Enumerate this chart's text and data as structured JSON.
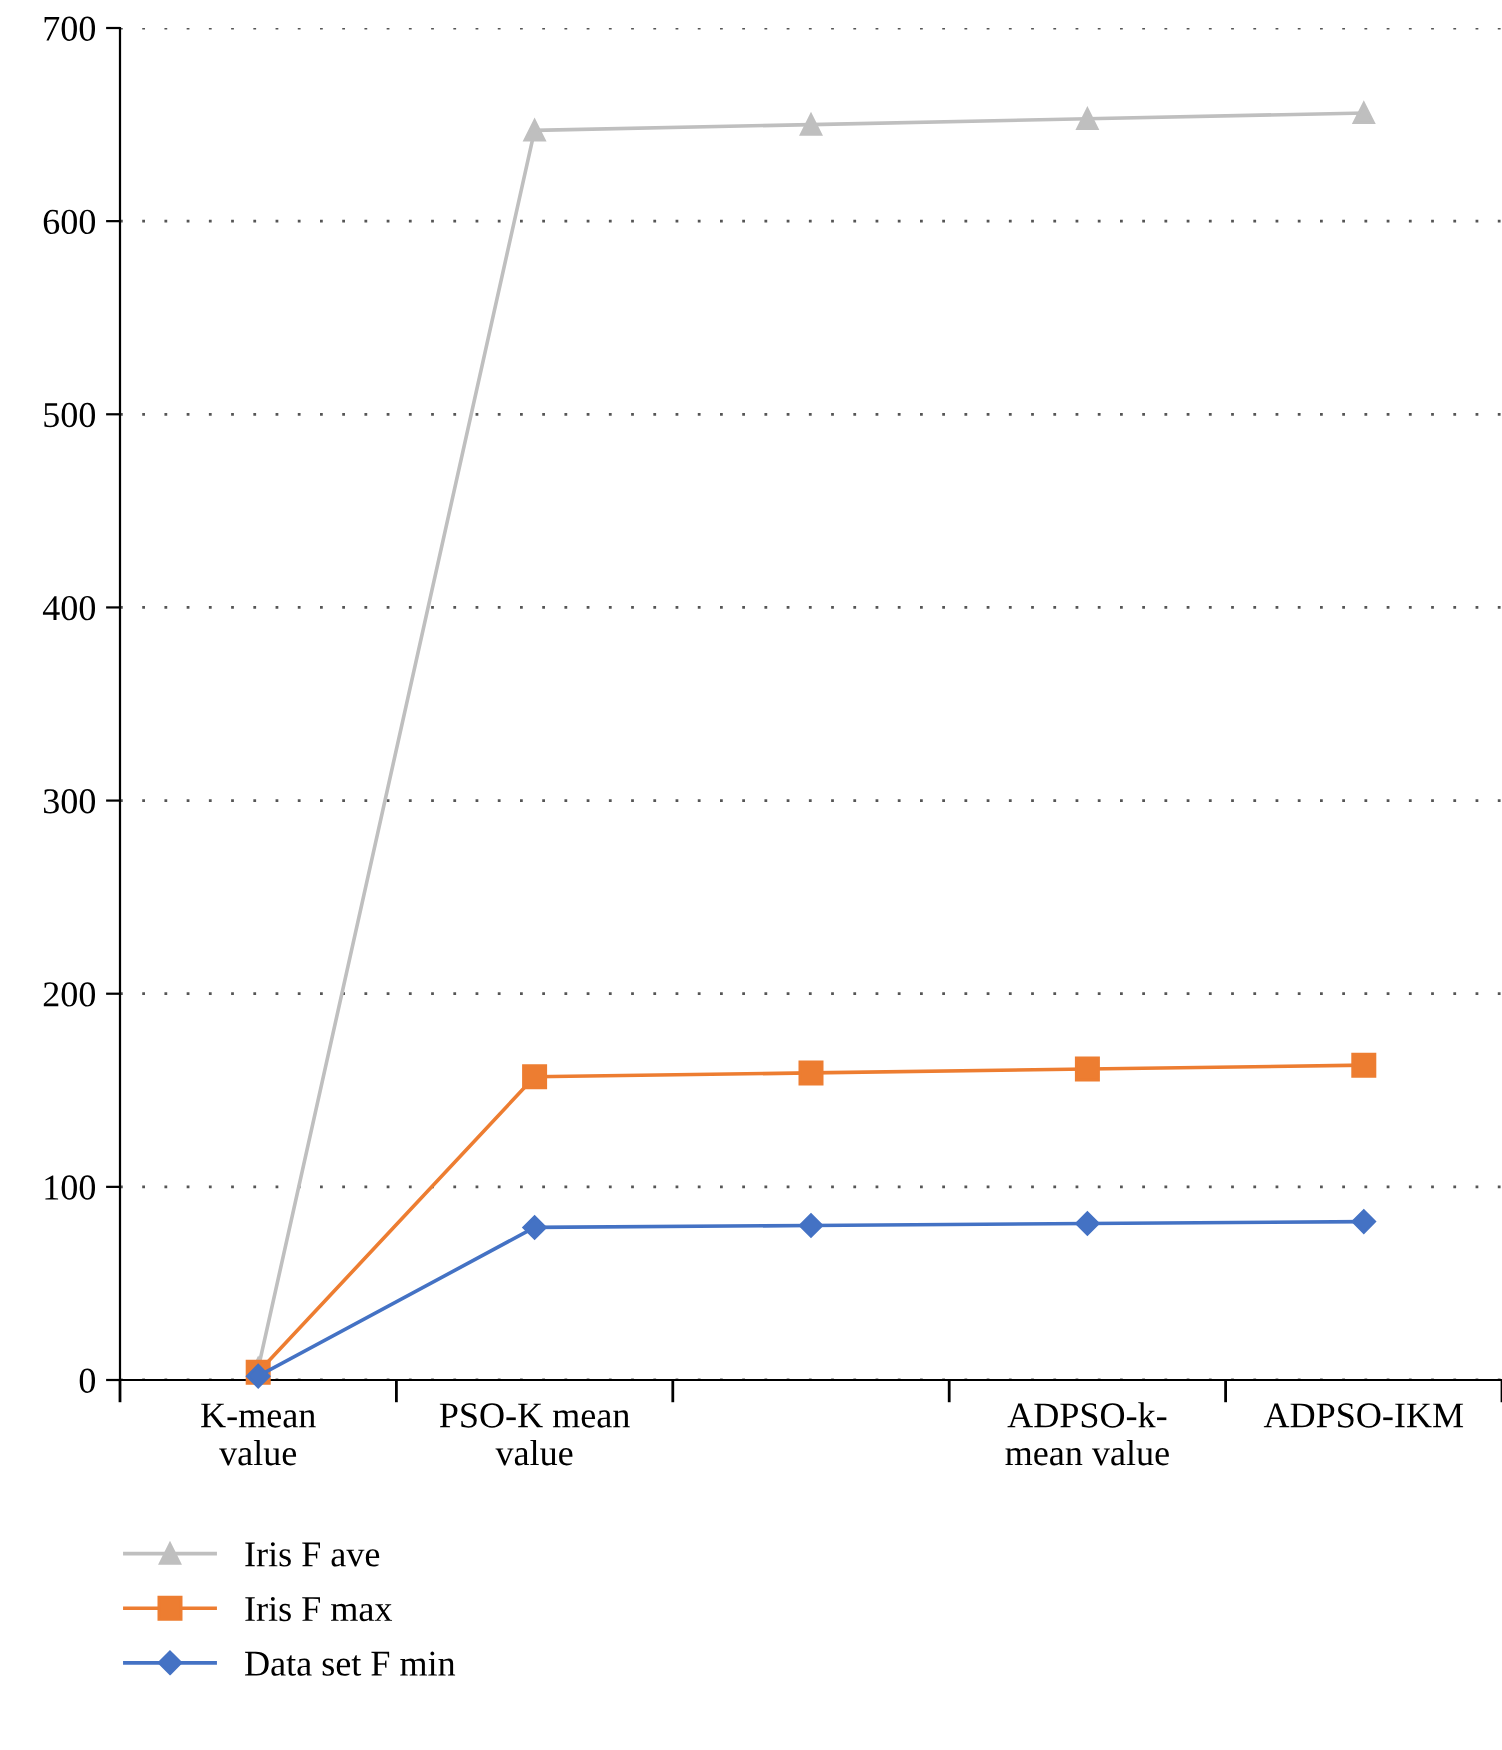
{
  "chart_data": {
    "type": "line",
    "categories": [
      "K-mean value",
      "PSO-K mean value",
      null,
      "ADPSO-k-mean value",
      "ADPSO-IKM"
    ],
    "series": [
      {
        "name": "Iris F ave",
        "color": "#bfbfbf",
        "marker": "triangle",
        "values": [
          6,
          647,
          650,
          653,
          656
        ]
      },
      {
        "name": "Iris F max",
        "color": "#ed7d31",
        "marker": "square",
        "values": [
          4,
          157,
          159,
          161,
          163
        ]
      },
      {
        "name": "Data set F min",
        "color": "#4472c4",
        "marker": "diamond",
        "values": [
          2,
          79,
          80,
          81,
          82
        ]
      }
    ],
    "ylim": [
      0,
      700
    ],
    "yticks": [
      0,
      100,
      200,
      300,
      400,
      500,
      600,
      700
    ],
    "grid": "y",
    "legend": "bottom left",
    "line_style": "solid"
  }
}
